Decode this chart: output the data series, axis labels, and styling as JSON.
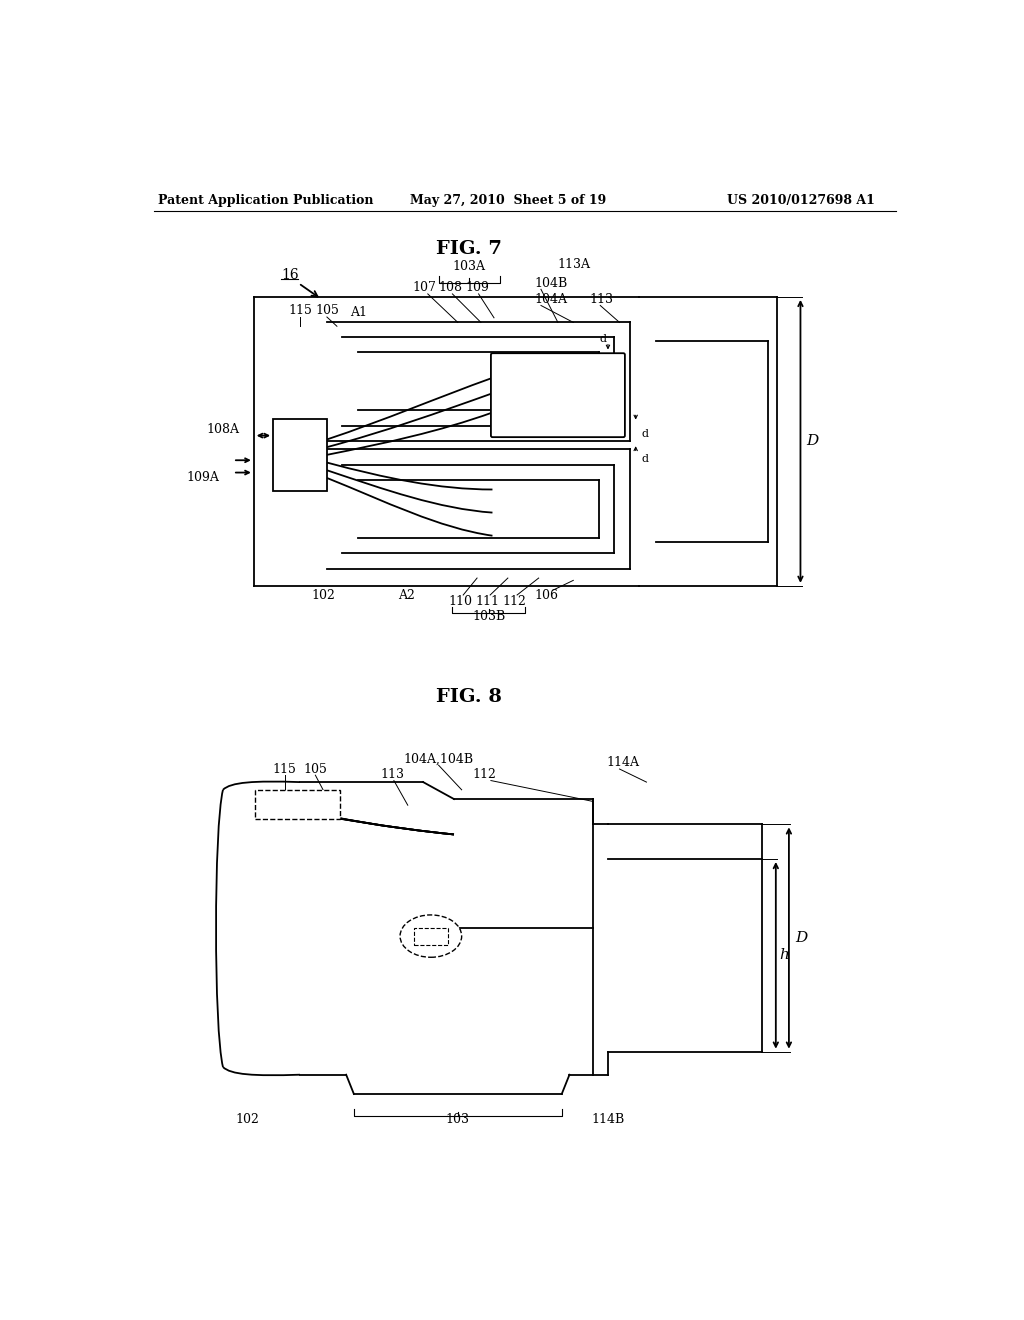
{
  "header_left": "Patent Application Publication",
  "header_center": "May 27, 2010  Sheet 5 of 19",
  "header_right": "US 2010/0127698 A1",
  "fig7_title": "FIG. 7",
  "fig8_title": "FIG. 8",
  "bg_color": "#ffffff",
  "line_color": "#000000",
  "header_fontsize": 9,
  "title_fontsize": 14
}
